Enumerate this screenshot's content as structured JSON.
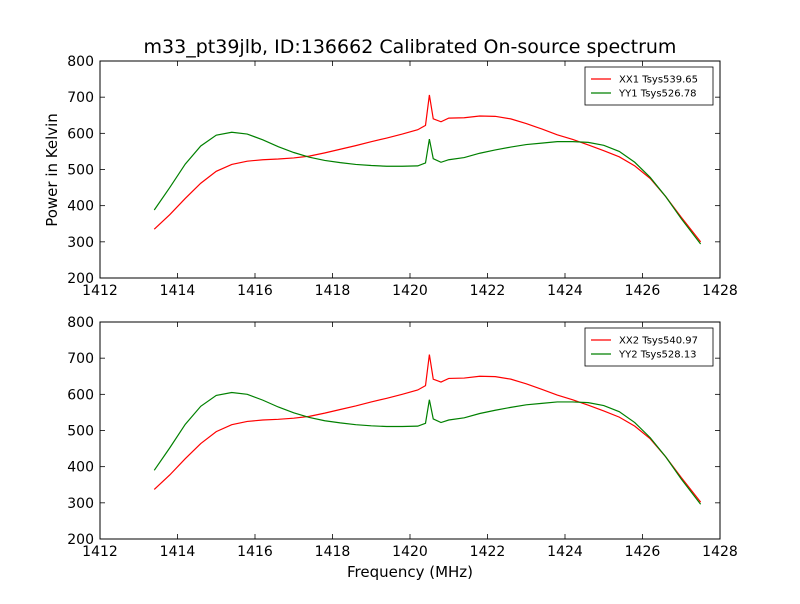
{
  "figure": {
    "title": "m33_pt39jlb, ID:136662 Calibrated On-source spectrum",
    "ylabel": "Power in Kelvin",
    "xlabel": "Frequency (MHz)"
  },
  "chart_data": [
    {
      "type": "line",
      "title": "m33_pt39jlb, ID:136662 Calibrated On-source spectrum",
      "ylabel": "Power in Kelvin",
      "xlabel": "",
      "xlim": [
        1412,
        1428
      ],
      "ylim": [
        200,
        800
      ],
      "xticks": [
        1412,
        1414,
        1416,
        1418,
        1420,
        1422,
        1424,
        1426,
        1428
      ],
      "yticks": [
        200,
        300,
        400,
        500,
        600,
        700,
        800
      ],
      "grid": false,
      "legend": "top-right",
      "series": [
        {
          "name": "XX1 Tsys539.65",
          "color": "#ff0000",
          "points": [
            [
              1413.4,
              335
            ],
            [
              1413.8,
              375
            ],
            [
              1414.2,
              420
            ],
            [
              1414.6,
              462
            ],
            [
              1415.0,
              495
            ],
            [
              1415.4,
              514
            ],
            [
              1415.8,
              523
            ],
            [
              1416.2,
              527
            ],
            [
              1416.6,
              529
            ],
            [
              1417.0,
              532
            ],
            [
              1417.4,
              537
            ],
            [
              1417.8,
              546
            ],
            [
              1418.2,
              556
            ],
            [
              1418.6,
              566
            ],
            [
              1419.0,
              577
            ],
            [
              1419.4,
              587
            ],
            [
              1419.8,
              598
            ],
            [
              1420.2,
              610
            ],
            [
              1420.4,
              622
            ],
            [
              1420.5,
              706
            ],
            [
              1420.6,
              640
            ],
            [
              1420.8,
              632
            ],
            [
              1421.0,
              642
            ],
            [
              1421.4,
              643
            ],
            [
              1421.8,
              648
            ],
            [
              1422.2,
              647
            ],
            [
              1422.6,
              640
            ],
            [
              1423.0,
              627
            ],
            [
              1423.4,
              612
            ],
            [
              1423.8,
              596
            ],
            [
              1424.2,
              583
            ],
            [
              1424.6,
              568
            ],
            [
              1425.0,
              552
            ],
            [
              1425.4,
              535
            ],
            [
              1425.8,
              510
            ],
            [
              1426.2,
              475
            ],
            [
              1426.6,
              425
            ],
            [
              1427.0,
              368
            ],
            [
              1427.5,
              300
            ]
          ]
        },
        {
          "name": "YY1 Tsys526.78",
          "color": "#008000",
          "points": [
            [
              1413.4,
              388
            ],
            [
              1413.8,
              450
            ],
            [
              1414.2,
              515
            ],
            [
              1414.6,
              565
            ],
            [
              1415.0,
              595
            ],
            [
              1415.4,
              603
            ],
            [
              1415.8,
              598
            ],
            [
              1416.2,
              582
            ],
            [
              1416.6,
              563
            ],
            [
              1417.0,
              547
            ],
            [
              1417.4,
              534
            ],
            [
              1417.8,
              525
            ],
            [
              1418.2,
              519
            ],
            [
              1418.6,
              514
            ],
            [
              1419.0,
              511
            ],
            [
              1419.4,
              509
            ],
            [
              1419.8,
              509
            ],
            [
              1420.2,
              510
            ],
            [
              1420.4,
              518
            ],
            [
              1420.5,
              584
            ],
            [
              1420.6,
              530
            ],
            [
              1420.8,
              520
            ],
            [
              1421.0,
              527
            ],
            [
              1421.4,
              533
            ],
            [
              1421.8,
              545
            ],
            [
              1422.2,
              554
            ],
            [
              1422.6,
              562
            ],
            [
              1423.0,
              569
            ],
            [
              1423.4,
              573
            ],
            [
              1423.8,
              577
            ],
            [
              1424.2,
              577
            ],
            [
              1424.6,
              575
            ],
            [
              1425.0,
              567
            ],
            [
              1425.4,
              550
            ],
            [
              1425.8,
              520
            ],
            [
              1426.2,
              478
            ],
            [
              1426.6,
              425
            ],
            [
              1427.0,
              364
            ],
            [
              1427.5,
              294
            ]
          ]
        }
      ]
    },
    {
      "type": "line",
      "title": "",
      "ylabel": "",
      "xlabel": "Frequency (MHz)",
      "xlim": [
        1412,
        1428
      ],
      "ylim": [
        200,
        800
      ],
      "xticks": [
        1412,
        1414,
        1416,
        1418,
        1420,
        1422,
        1424,
        1426,
        1428
      ],
      "yticks": [
        200,
        300,
        400,
        500,
        600,
        700,
        800
      ],
      "grid": false,
      "legend": "top-right",
      "series": [
        {
          "name": "XX2 Tsys540.97",
          "color": "#ff0000",
          "points": [
            [
              1413.4,
              337
            ],
            [
              1413.8,
              377
            ],
            [
              1414.2,
              422
            ],
            [
              1414.6,
              464
            ],
            [
              1415.0,
              497
            ],
            [
              1415.4,
              516
            ],
            [
              1415.8,
              525
            ],
            [
              1416.2,
              529
            ],
            [
              1416.6,
              531
            ],
            [
              1417.0,
              534
            ],
            [
              1417.4,
              539
            ],
            [
              1417.8,
              548
            ],
            [
              1418.2,
              558
            ],
            [
              1418.6,
              568
            ],
            [
              1419.0,
              579
            ],
            [
              1419.4,
              589
            ],
            [
              1419.8,
              600
            ],
            [
              1420.2,
              612
            ],
            [
              1420.4,
              624
            ],
            [
              1420.5,
              710
            ],
            [
              1420.6,
              642
            ],
            [
              1420.8,
              634
            ],
            [
              1421.0,
              644
            ],
            [
              1421.4,
              645
            ],
            [
              1421.8,
              650
            ],
            [
              1422.2,
              649
            ],
            [
              1422.6,
              642
            ],
            [
              1423.0,
              629
            ],
            [
              1423.4,
              614
            ],
            [
              1423.8,
              598
            ],
            [
              1424.2,
              585
            ],
            [
              1424.6,
              570
            ],
            [
              1425.0,
              554
            ],
            [
              1425.4,
              537
            ],
            [
              1425.8,
              512
            ],
            [
              1426.2,
              477
            ],
            [
              1426.6,
              427
            ],
            [
              1427.0,
              370
            ],
            [
              1427.5,
              302
            ]
          ]
        },
        {
          "name": "YY2 Tsys528.13",
          "color": "#008000",
          "points": [
            [
              1413.4,
              390
            ],
            [
              1413.8,
              452
            ],
            [
              1414.2,
              517
            ],
            [
              1414.6,
              567
            ],
            [
              1415.0,
              597
            ],
            [
              1415.4,
              605
            ],
            [
              1415.8,
              600
            ],
            [
              1416.2,
              584
            ],
            [
              1416.6,
              565
            ],
            [
              1417.0,
              549
            ],
            [
              1417.4,
              536
            ],
            [
              1417.8,
              527
            ],
            [
              1418.2,
              521
            ],
            [
              1418.6,
              516
            ],
            [
              1419.0,
              513
            ],
            [
              1419.4,
              511
            ],
            [
              1419.8,
              511
            ],
            [
              1420.2,
              512
            ],
            [
              1420.4,
              520
            ],
            [
              1420.5,
              585
            ],
            [
              1420.6,
              532
            ],
            [
              1420.8,
              522
            ],
            [
              1421.0,
              529
            ],
            [
              1421.4,
              535
            ],
            [
              1421.8,
              547
            ],
            [
              1422.2,
              556
            ],
            [
              1422.6,
              564
            ],
            [
              1423.0,
              571
            ],
            [
              1423.4,
              575
            ],
            [
              1423.8,
              579
            ],
            [
              1424.2,
              579
            ],
            [
              1424.6,
              577
            ],
            [
              1425.0,
              569
            ],
            [
              1425.4,
              552
            ],
            [
              1425.8,
              522
            ],
            [
              1426.2,
              480
            ],
            [
              1426.6,
              427
            ],
            [
              1427.0,
              366
            ],
            [
              1427.5,
              296
            ]
          ]
        }
      ]
    }
  ]
}
